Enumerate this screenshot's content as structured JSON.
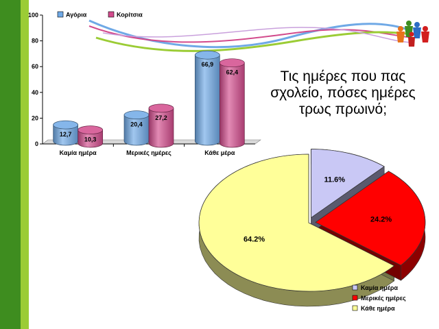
{
  "slide": {
    "title_lines": [
      "Τις ημέρες που πας",
      "σχολείο, πόσες ημέρες",
      "τρως πρωινό;"
    ],
    "colors": {
      "stripe_dark": "#3e8d1f",
      "stripe_light": "#9bcc35",
      "boys": "#6fa9e6",
      "girls": "#d24b8c"
    }
  },
  "chart_data": [
    {
      "type": "bar",
      "categories": [
        "Καμία ημέρα",
        "Μερικές ημέρες",
        "Κάθε μέρα"
      ],
      "series": [
        {
          "name": "Αγόρια",
          "values": [
            12.7,
            20.4,
            66.9
          ],
          "labels": [
            "12,7",
            "20,4",
            "66,9"
          ],
          "color": "#6fa9e6"
        },
        {
          "name": "Κορίτσια",
          "values": [
            10.3,
            27.2,
            62.4
          ],
          "labels": [
            "10,3",
            "27,2",
            "62,4"
          ],
          "color": "#d24b8c"
        }
      ],
      "ylim": [
        0,
        100
      ],
      "yticks": [
        "0",
        "20",
        "40",
        "60",
        "80",
        "100"
      ],
      "legend_position": "top",
      "grid": false,
      "style": "3d-cylinder"
    },
    {
      "type": "pie",
      "style": "3d-exploded",
      "slices": [
        {
          "label": "Καμία ημέρα",
          "value": 11.6,
          "display": "11.6%",
          "color": "#c9c8f5"
        },
        {
          "label": "Μερικές ημέρες",
          "value": 24.2,
          "display": "24.2%",
          "color": "#ff0000"
        },
        {
          "label": "Κάθε ημέρα",
          "value": 64.2,
          "display": "64.2%",
          "color": "#ffff99"
        }
      ],
      "legend_position": "bottom-right"
    }
  ]
}
